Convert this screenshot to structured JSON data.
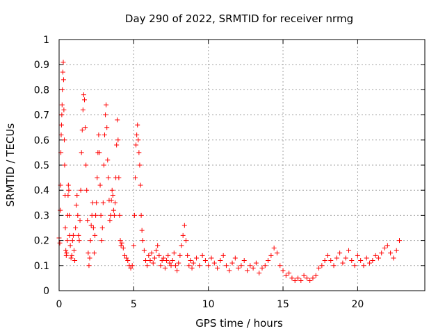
{
  "chart_data": {
    "type": "scatter",
    "title": "Day 290 of 2022, SRMTID for receiver nrmg",
    "xlabel": "GPS time / hours",
    "ylabel": "SRMTID / TECUs",
    "xlim": [
      0,
      24.5
    ],
    "ylim": [
      0,
      1
    ],
    "xticks": [
      0,
      5,
      10,
      15,
      20
    ],
    "xtick_labels": [
      "0",
      "5",
      "10",
      "15",
      "20"
    ],
    "yticks": [
      0,
      0.1,
      0.2,
      0.3,
      0.4,
      0.5,
      0.6,
      0.7,
      0.8,
      0.9,
      1
    ],
    "ytick_labels": [
      "0",
      "0.1",
      "0.2",
      "0.3",
      "0.4",
      "0.5",
      "0.6",
      "0.7",
      "0.8",
      "0.9",
      "1"
    ],
    "grid": true,
    "marker": "plus",
    "series": [
      {
        "name": "SRMTID",
        "color": "#ff0000",
        "points": [
          [
            0.0,
            0.21
          ],
          [
            0.05,
            0.19
          ],
          [
            0.08,
            0.32
          ],
          [
            0.1,
            0.42
          ],
          [
            0.12,
            0.55
          ],
          [
            0.14,
            0.62
          ],
          [
            0.16,
            0.66
          ],
          [
            0.18,
            0.7
          ],
          [
            0.2,
            0.74
          ],
          [
            0.22,
            0.8
          ],
          [
            0.25,
            0.87
          ],
          [
            0.28,
            0.91
          ],
          [
            0.3,
            0.84
          ],
          [
            0.32,
            0.72
          ],
          [
            0.35,
            0.6
          ],
          [
            0.37,
            0.5
          ],
          [
            0.4,
            0.38
          ],
          [
            0.42,
            0.25
          ],
          [
            0.45,
            0.16
          ],
          [
            0.48,
            0.14
          ],
          [
            0.5,
            0.15
          ],
          [
            0.55,
            0.2
          ],
          [
            0.58,
            0.3
          ],
          [
            0.6,
            0.38
          ],
          [
            0.62,
            0.42
          ],
          [
            0.65,
            0.4
          ],
          [
            0.68,
            0.3
          ],
          [
            0.7,
            0.22
          ],
          [
            0.75,
            0.18
          ],
          [
            0.8,
            0.13
          ],
          [
            0.85,
            0.14
          ],
          [
            0.9,
            0.2
          ],
          [
            0.95,
            0.22
          ],
          [
            1.0,
            0.16
          ],
          [
            1.05,
            0.12
          ],
          [
            1.1,
            0.25
          ],
          [
            1.15,
            0.34
          ],
          [
            1.2,
            0.38
          ],
          [
            1.25,
            0.3
          ],
          [
            1.3,
            0.22
          ],
          [
            1.35,
            0.2
          ],
          [
            1.4,
            0.28
          ],
          [
            1.45,
            0.4
          ],
          [
            1.5,
            0.55
          ],
          [
            1.55,
            0.64
          ],
          [
            1.6,
            0.72
          ],
          [
            1.65,
            0.78
          ],
          [
            1.7,
            0.76
          ],
          [
            1.75,
            0.65
          ],
          [
            1.8,
            0.5
          ],
          [
            1.85,
            0.4
          ],
          [
            1.9,
            0.28
          ],
          [
            1.95,
            0.15
          ],
          [
            2.0,
            0.1
          ],
          [
            2.05,
            0.13
          ],
          [
            2.1,
            0.2
          ],
          [
            2.15,
            0.26
          ],
          [
            2.2,
            0.3
          ],
          [
            2.25,
            0.35
          ],
          [
            2.3,
            0.25
          ],
          [
            2.35,
            0.15
          ],
          [
            2.4,
            0.22
          ],
          [
            2.45,
            0.3
          ],
          [
            2.5,
            0.35
          ],
          [
            2.55,
            0.45
          ],
          [
            2.6,
            0.55
          ],
          [
            2.65,
            0.62
          ],
          [
            2.7,
            0.55
          ],
          [
            2.75,
            0.42
          ],
          [
            2.8,
            0.3
          ],
          [
            2.85,
            0.2
          ],
          [
            2.9,
            0.25
          ],
          [
            2.95,
            0.35
          ],
          [
            3.0,
            0.5
          ],
          [
            3.05,
            0.62
          ],
          [
            3.1,
            0.7
          ],
          [
            3.15,
            0.74
          ],
          [
            3.2,
            0.65
          ],
          [
            3.25,
            0.52
          ],
          [
            3.3,
            0.45
          ],
          [
            3.35,
            0.36
          ],
          [
            3.4,
            0.28
          ],
          [
            3.45,
            0.3
          ],
          [
            3.5,
            0.36
          ],
          [
            3.55,
            0.4
          ],
          [
            3.6,
            0.38
          ],
          [
            3.65,
            0.32
          ],
          [
            3.7,
            0.3
          ],
          [
            3.75,
            0.35
          ],
          [
            3.8,
            0.45
          ],
          [
            3.85,
            0.58
          ],
          [
            3.9,
            0.68
          ],
          [
            3.95,
            0.6
          ],
          [
            4.0,
            0.45
          ],
          [
            4.05,
            0.3
          ],
          [
            4.1,
            0.2
          ],
          [
            4.15,
            0.18
          ],
          [
            4.2,
            0.19
          ],
          [
            4.3,
            0.17
          ],
          [
            4.4,
            0.14
          ],
          [
            4.5,
            0.13
          ],
          [
            4.6,
            0.12
          ],
          [
            4.7,
            0.1
          ],
          [
            4.8,
            0.09
          ],
          [
            4.9,
            0.1
          ],
          [
            5.0,
            0.18
          ],
          [
            5.05,
            0.3
          ],
          [
            5.1,
            0.45
          ],
          [
            5.15,
            0.58
          ],
          [
            5.2,
            0.62
          ],
          [
            5.25,
            0.66
          ],
          [
            5.3,
            0.6
          ],
          [
            5.35,
            0.55
          ],
          [
            5.4,
            0.5
          ],
          [
            5.45,
            0.42
          ],
          [
            5.5,
            0.3
          ],
          [
            5.55,
            0.24
          ],
          [
            5.6,
            0.2
          ],
          [
            5.7,
            0.16
          ],
          [
            5.8,
            0.12
          ],
          [
            5.9,
            0.1
          ],
          [
            6.0,
            0.14
          ],
          [
            6.1,
            0.12
          ],
          [
            6.2,
            0.15
          ],
          [
            6.3,
            0.11
          ],
          [
            6.4,
            0.13
          ],
          [
            6.5,
            0.16
          ],
          [
            6.6,
            0.18
          ],
          [
            6.7,
            0.14
          ],
          [
            6.8,
            0.1
          ],
          [
            6.9,
            0.12
          ],
          [
            7.0,
            0.13
          ],
          [
            7.1,
            0.09
          ],
          [
            7.2,
            0.12
          ],
          [
            7.3,
            0.14
          ],
          [
            7.4,
            0.11
          ],
          [
            7.5,
            0.1
          ],
          [
            7.6,
            0.12
          ],
          [
            7.7,
            0.15
          ],
          [
            7.8,
            0.1
          ],
          [
            7.9,
            0.08
          ],
          [
            8.0,
            0.11
          ],
          [
            8.1,
            0.14
          ],
          [
            8.2,
            0.18
          ],
          [
            8.3,
            0.22
          ],
          [
            8.4,
            0.26
          ],
          [
            8.5,
            0.2
          ],
          [
            8.6,
            0.14
          ],
          [
            8.7,
            0.1
          ],
          [
            8.8,
            0.12
          ],
          [
            8.9,
            0.09
          ],
          [
            9.0,
            0.11
          ],
          [
            9.2,
            0.13
          ],
          [
            9.4,
            0.1
          ],
          [
            9.6,
            0.14
          ],
          [
            9.8,
            0.12
          ],
          [
            10.0,
            0.1
          ],
          [
            10.2,
            0.13
          ],
          [
            10.4,
            0.11
          ],
          [
            10.6,
            0.09
          ],
          [
            10.8,
            0.12
          ],
          [
            11.0,
            0.14
          ],
          [
            11.2,
            0.1
          ],
          [
            11.4,
            0.08
          ],
          [
            11.6,
            0.11
          ],
          [
            11.8,
            0.13
          ],
          [
            12.0,
            0.09
          ],
          [
            12.2,
            0.1
          ],
          [
            12.4,
            0.12
          ],
          [
            12.6,
            0.08
          ],
          [
            12.8,
            0.1
          ],
          [
            13.0,
            0.09
          ],
          [
            13.2,
            0.11
          ],
          [
            13.4,
            0.07
          ],
          [
            13.6,
            0.09
          ],
          [
            13.8,
            0.1
          ],
          [
            14.0,
            0.12
          ],
          [
            14.2,
            0.14
          ],
          [
            14.4,
            0.17
          ],
          [
            14.6,
            0.15
          ],
          [
            14.8,
            0.1
          ],
          [
            15.0,
            0.08
          ],
          [
            15.2,
            0.06
          ],
          [
            15.4,
            0.07
          ],
          [
            15.6,
            0.05
          ],
          [
            15.8,
            0.04
          ],
          [
            16.0,
            0.05
          ],
          [
            16.2,
            0.04
          ],
          [
            16.4,
            0.06
          ],
          [
            16.6,
            0.05
          ],
          [
            16.8,
            0.04
          ],
          [
            17.0,
            0.05
          ],
          [
            17.2,
            0.06
          ],
          [
            17.4,
            0.09
          ],
          [
            17.6,
            0.1
          ],
          [
            17.8,
            0.12
          ],
          [
            18.0,
            0.14
          ],
          [
            18.2,
            0.12
          ],
          [
            18.4,
            0.1
          ],
          [
            18.6,
            0.13
          ],
          [
            18.8,
            0.15
          ],
          [
            19.0,
            0.11
          ],
          [
            19.2,
            0.13
          ],
          [
            19.4,
            0.16
          ],
          [
            19.6,
            0.12
          ],
          [
            19.8,
            0.1
          ],
          [
            20.0,
            0.14
          ],
          [
            20.2,
            0.12
          ],
          [
            20.4,
            0.1
          ],
          [
            20.6,
            0.13
          ],
          [
            20.8,
            0.11
          ],
          [
            21.0,
            0.12
          ],
          [
            21.2,
            0.14
          ],
          [
            21.4,
            0.13
          ],
          [
            21.6,
            0.15
          ],
          [
            21.8,
            0.17
          ],
          [
            22.0,
            0.18
          ],
          [
            22.2,
            0.15
          ],
          [
            22.4,
            0.13
          ],
          [
            22.6,
            0.16
          ],
          [
            22.8,
            0.2
          ]
        ]
      }
    ]
  }
}
